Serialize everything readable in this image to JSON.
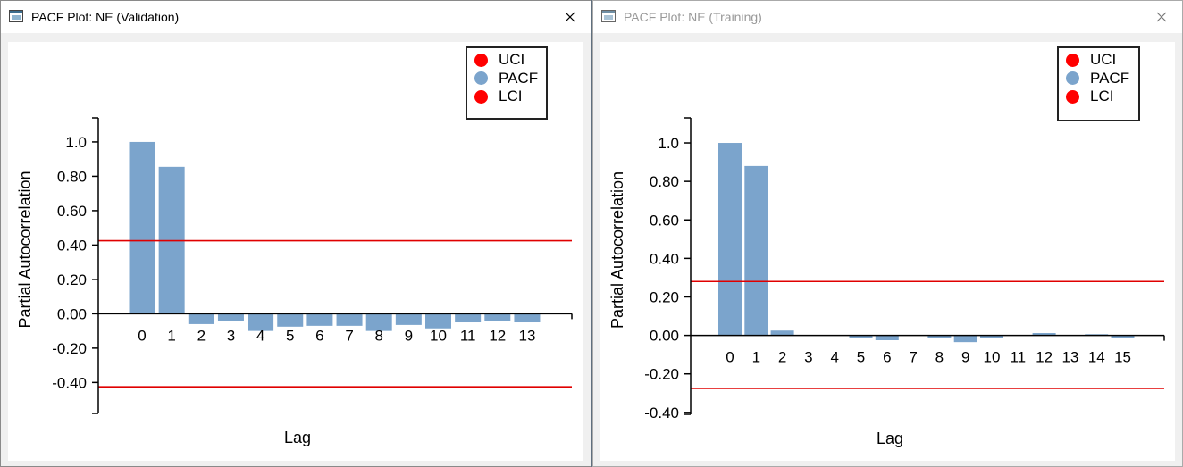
{
  "windows": [
    {
      "id": "validation",
      "title": "PACF Plot: NE (Validation)",
      "active": true,
      "chart_data": {
        "type": "bar",
        "xlabel": "Lag",
        "ylabel": "Partial Autocorrelation",
        "categories": [
          "0",
          "1",
          "2",
          "3",
          "4",
          "5",
          "6",
          "7",
          "8",
          "9",
          "10",
          "11",
          "12",
          "13"
        ],
        "values": [
          1.0,
          0.855,
          -0.06,
          -0.04,
          -0.1,
          -0.075,
          -0.07,
          -0.07,
          -0.1,
          -0.065,
          -0.085,
          -0.05,
          -0.04,
          -0.05
        ],
        "ylim": [
          -0.58,
          1.14
        ],
        "yticks": [
          -0.4,
          -0.2,
          0.0,
          0.2,
          0.4,
          0.6,
          0.8,
          1.0
        ],
        "ytick_labels": [
          "-0.40",
          "-0.20",
          "0.00",
          "0.20",
          "0.40",
          "0.60",
          "0.80",
          "1.0"
        ],
        "uci": 0.425,
        "lci": -0.425,
        "legend": [
          {
            "label": "UCI",
            "color": "#ff0000"
          },
          {
            "label": "PACF",
            "color": "#7ba4cc"
          },
          {
            "label": "LCI",
            "color": "#ff0000"
          }
        ],
        "legend_position": "top-right",
        "bar_color": "#7ba4cc",
        "line_color": "#e00000"
      }
    },
    {
      "id": "training",
      "title": "PACF Plot: NE (Training)",
      "active": false,
      "chart_data": {
        "type": "bar",
        "xlabel": "Lag",
        "ylabel": "Partial Autocorrelation",
        "categories": [
          "0",
          "1",
          "2",
          "3",
          "4",
          "5",
          "6",
          "7",
          "8",
          "9",
          "10",
          "11",
          "12",
          "13",
          "14",
          "15"
        ],
        "values": [
          1.0,
          0.88,
          0.025,
          0.0,
          0.0,
          -0.015,
          -0.025,
          0.0,
          -0.015,
          -0.035,
          -0.015,
          0.0,
          0.012,
          0.0,
          0.006,
          -0.015
        ],
        "ylim": [
          -0.41,
          1.13
        ],
        "yticks": [
          -0.4,
          -0.2,
          0.0,
          0.2,
          0.4,
          0.6,
          0.8,
          1.0
        ],
        "ytick_labels": [
          "-0.40",
          "-0.20",
          "0.00",
          "0.20",
          "0.40",
          "0.60",
          "0.80",
          "1.0"
        ],
        "uci": 0.28,
        "lci": -0.275,
        "legend": [
          {
            "label": "UCI",
            "color": "#ff0000"
          },
          {
            "label": "PACF",
            "color": "#7ba4cc"
          },
          {
            "label": "LCI",
            "color": "#ff0000"
          }
        ],
        "legend_position": "top-right",
        "bar_color": "#7ba4cc",
        "line_color": "#e00000"
      }
    }
  ],
  "icons": {
    "app": "window-app-icon",
    "close": "close-icon"
  }
}
